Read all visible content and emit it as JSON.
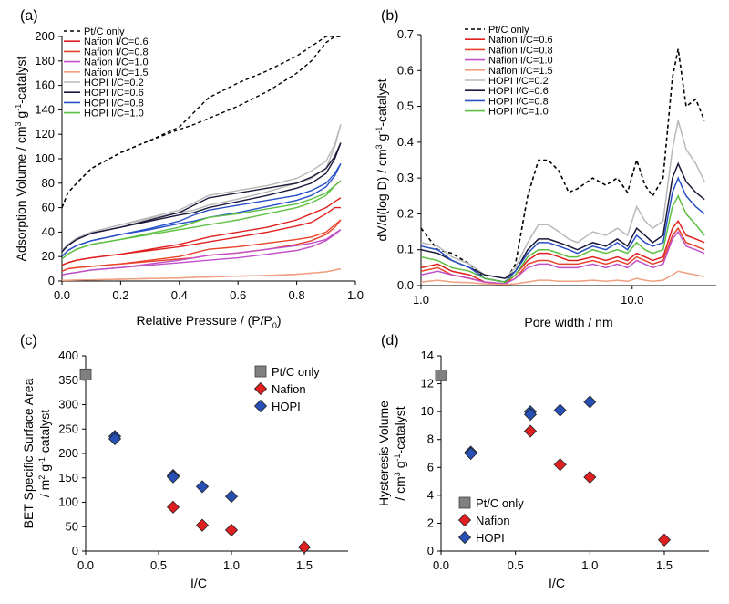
{
  "colors": {
    "pt": "#000000",
    "nafion": [
      "#e02020",
      "#e8432a",
      "#c050c8",
      "#f0a080"
    ],
    "hopi": [
      "#b8b8b8",
      "#1a1a3a",
      "#2850c8",
      "#5cc040"
    ],
    "nafion_marker": "#e02020",
    "hopi_marker": "#2850b4",
    "pt_marker": "#808080"
  },
  "chart_data": [
    {
      "panel_label": "(a)",
      "type": "line",
      "xlabel": "Relative Pressure / (P/P0)",
      "xlabel_main": "Relative Pressure / (P/P",
      "xlabel_sub": "0",
      "xlabel_end": ")",
      "ylabel_line1": "Adsorption  Volume / cm",
      "ylabel_sup": "3",
      "ylabel_rest": " g",
      "ylabel_sup2": "-1",
      "ylabel_end": "-catalyst",
      "xlim": [
        0,
        1.0
      ],
      "ylim": [
        0,
        200
      ],
      "xticks": [
        "0.0",
        "0.2",
        "0.4",
        "0.6",
        "0.8",
        "1.0"
      ],
      "yticks": [
        "0",
        "20",
        "40",
        "60",
        "80",
        "100",
        "120",
        "140",
        "160",
        "180",
        "200"
      ],
      "legend": [
        "Pt/C only",
        "Nafion I/C=0.6",
        "Nafion I/C=0.8",
        "Nafion I/C=1.0",
        "Nafion I/C=1.5",
        "HOPI I/C=0.2",
        "HOPI I/C=0.6",
        "HOPI I/C=0.8",
        "HOPI I/C=1.0"
      ],
      "series_anchor_x": [
        0.0,
        0.02,
        0.05,
        0.1,
        0.2,
        0.3,
        0.4,
        0.45,
        0.5,
        0.6,
        0.7,
        0.8,
        0.85,
        0.9,
        0.93,
        0.95
      ],
      "series": [
        {
          "name": "Pt/C only",
          "style": "dashed",
          "color_key": "pt",
          "idx": 0,
          "adsorption": [
            60,
            72,
            80,
            92,
            105,
            115,
            124,
            128,
            133,
            143,
            155,
            170,
            180,
            195,
            200,
            200
          ],
          "desorption": [
            60,
            72,
            80,
            92,
            105,
            115,
            126,
            138,
            150,
            162,
            172,
            184,
            192,
            200,
            200,
            200
          ]
        },
        {
          "name": "Nafion I/C=0.6",
          "color_key": "nafion",
          "idx": 0,
          "adsorption": [
            13,
            15,
            17,
            19,
            22,
            25,
            28,
            30,
            32,
            36,
            40,
            45,
            48,
            55,
            60,
            60
          ],
          "desorption": [
            13,
            15,
            17,
            19,
            22,
            26,
            30,
            33,
            36,
            40,
            44,
            50,
            55,
            60,
            65,
            68
          ]
        },
        {
          "name": "Nafion I/C=0.8",
          "color_key": "nafion",
          "idx": 1,
          "adsorption": [
            8,
            10,
            11,
            12,
            14,
            16,
            18,
            19,
            21,
            23,
            26,
            30,
            33,
            38,
            44,
            50
          ],
          "desorption": [
            8,
            10,
            11,
            12,
            14,
            17,
            20,
            23,
            26,
            28,
            31,
            34,
            36,
            40,
            46,
            50
          ]
        },
        {
          "name": "Nafion I/C=1.0",
          "color_key": "nafion",
          "idx": 2,
          "adsorption": [
            5,
            6,
            7,
            9,
            11,
            13,
            15,
            16,
            17,
            19,
            22,
            25,
            28,
            33,
            38,
            42
          ],
          "desorption": [
            5,
            6,
            7,
            9,
            11,
            14,
            17,
            19,
            21,
            23,
            26,
            29,
            31,
            34,
            39,
            42
          ]
        },
        {
          "name": "Nafion I/C=1.5",
          "color_key": "nafion",
          "idx": 3,
          "adsorption": [
            0.5,
            0.6,
            0.8,
            1,
            1.5,
            2,
            2.5,
            3,
            3.3,
            4,
            4.5,
            5.5,
            6.5,
            7.5,
            9,
            10
          ],
          "desorption": [
            0.5,
            0.6,
            0.8,
            1,
            1.5,
            2,
            2.5,
            3,
            3.3,
            4,
            4.5,
            5.5,
            6.5,
            7.5,
            9,
            10
          ]
        },
        {
          "name": "HOPI I/C=0.2",
          "color_key": "hopi",
          "idx": 0,
          "adsorption": [
            25,
            30,
            35,
            40,
            46,
            51,
            56,
            58,
            62,
            67,
            73,
            80,
            84,
            92,
            110,
            128
          ],
          "desorption": [
            25,
            30,
            35,
            40,
            46,
            52,
            58,
            64,
            70,
            74,
            78,
            84,
            90,
            98,
            112,
            128
          ]
        },
        {
          "name": "HOPI I/C=0.6",
          "color_key": "hopi",
          "idx": 1,
          "adsorption": [
            24,
            29,
            34,
            39,
            44,
            49,
            54,
            56,
            60,
            65,
            70,
            76,
            80,
            88,
            100,
            113
          ],
          "desorption": [
            24,
            29,
            34,
            39,
            44,
            50,
            56,
            62,
            68,
            72,
            76,
            80,
            85,
            92,
            102,
            113
          ]
        },
        {
          "name": "HOPI I/C=0.8",
          "color_key": "hopi",
          "idx": 2,
          "adsorption": [
            20,
            25,
            29,
            33,
            38,
            42,
            47,
            49,
            52,
            56,
            61,
            66,
            70,
            77,
            86,
            96
          ],
          "desorption": [
            20,
            25,
            29,
            33,
            38,
            43,
            49,
            54,
            58,
            62,
            66,
            70,
            74,
            80,
            88,
            96
          ]
        },
        {
          "name": "HOPI I/C=1.0",
          "color_key": "hopi",
          "idx": 3,
          "adsorption": [
            18,
            22,
            26,
            30,
            34,
            38,
            42,
            44,
            46,
            50,
            55,
            60,
            64,
            70,
            78,
            82
          ],
          "desorption": [
            18,
            22,
            26,
            30,
            34,
            39,
            44,
            48,
            52,
            55,
            59,
            63,
            67,
            72,
            78,
            82
          ]
        }
      ]
    },
    {
      "panel_label": "(b)",
      "type": "line",
      "xscale": "log",
      "xlabel": "Pore width / nm",
      "ylabel_line1": "dV/d(log D) / cm",
      "ylabel_sup": "3",
      "ylabel_rest": " g",
      "ylabel_sup2": "-1",
      "ylabel_end": "-catalyst",
      "xlim": [
        1.0,
        25
      ],
      "ylim": [
        0,
        0.7
      ],
      "xticks": [
        "1.0",
        "10.0"
      ],
      "yticks": [
        "0.0",
        "0.1",
        "0.2",
        "0.3",
        "0.4",
        "0.5",
        "0.6",
        "0.7"
      ],
      "legend": [
        "Pt/C only",
        "Nafion I/C=0.6",
        "Nafion I/C=0.8",
        "Nafion I/C=1.0",
        "Nafion I/C=1.5",
        "HOPI I/C=0.2",
        "HOPI I/C=0.6",
        "HOPI I/C=0.8",
        "HOPI I/C=1.0"
      ],
      "x": [
        1.0,
        1.2,
        1.4,
        1.7,
        2.0,
        2.5,
        2.8,
        3.2,
        3.6,
        4.0,
        4.5,
        5.0,
        5.5,
        6.5,
        7.5,
        8.5,
        9.5,
        10.5,
        11.5,
        12.5,
        14,
        15.5,
        16.5,
        18,
        20,
        22
      ],
      "series": [
        {
          "name": "Pt/C only",
          "style": "dashed",
          "color_key": "pt",
          "idx": 0,
          "values": [
            0.16,
            0.1,
            0.09,
            0.06,
            0.02,
            0.01,
            0.06,
            0.25,
            0.35,
            0.35,
            0.32,
            0.26,
            0.27,
            0.3,
            0.28,
            0.3,
            0.26,
            0.35,
            0.28,
            0.25,
            0.3,
            0.58,
            0.66,
            0.5,
            0.52,
            0.46
          ]
        },
        {
          "name": "Nafion I/C=0.6",
          "color_key": "nafion",
          "idx": 0,
          "values": [
            0.05,
            0.06,
            0.04,
            0.03,
            0.01,
            0.005,
            0.03,
            0.07,
            0.09,
            0.09,
            0.08,
            0.07,
            0.07,
            0.08,
            0.07,
            0.08,
            0.07,
            0.09,
            0.08,
            0.07,
            0.08,
            0.16,
            0.18,
            0.14,
            0.13,
            0.12
          ]
        },
        {
          "name": "Nafion I/C=0.8",
          "color_key": "nafion",
          "idx": 1,
          "values": [
            0.04,
            0.05,
            0.03,
            0.02,
            0.01,
            0.005,
            0.02,
            0.06,
            0.07,
            0.07,
            0.06,
            0.06,
            0.06,
            0.07,
            0.06,
            0.07,
            0.06,
            0.08,
            0.07,
            0.06,
            0.07,
            0.14,
            0.16,
            0.12,
            0.11,
            0.1
          ]
        },
        {
          "name": "Nafion I/C=1.0",
          "color_key": "nafion",
          "idx": 2,
          "values": [
            0.03,
            0.04,
            0.03,
            0.02,
            0.01,
            0.005,
            0.02,
            0.05,
            0.06,
            0.06,
            0.05,
            0.05,
            0.05,
            0.06,
            0.05,
            0.06,
            0.05,
            0.07,
            0.06,
            0.05,
            0.06,
            0.13,
            0.15,
            0.11,
            0.1,
            0.09
          ]
        },
        {
          "name": "Nafion I/C=1.5",
          "color_key": "nafion",
          "idx": 3,
          "values": [
            0.01,
            0.015,
            0.01,
            0.008,
            0.005,
            0.003,
            0.005,
            0.01,
            0.015,
            0.015,
            0.012,
            0.012,
            0.012,
            0.015,
            0.012,
            0.015,
            0.012,
            0.02,
            0.015,
            0.012,
            0.015,
            0.03,
            0.04,
            0.035,
            0.03,
            0.025
          ]
        },
        {
          "name": "HOPI I/C=0.2",
          "color_key": "hopi",
          "idx": 0,
          "values": [
            0.12,
            0.11,
            0.08,
            0.06,
            0.03,
            0.02,
            0.05,
            0.12,
            0.17,
            0.17,
            0.15,
            0.13,
            0.12,
            0.15,
            0.14,
            0.16,
            0.14,
            0.22,
            0.18,
            0.16,
            0.18,
            0.38,
            0.46,
            0.38,
            0.34,
            0.29
          ]
        },
        {
          "name": "HOPI I/C=0.6",
          "color_key": "hopi",
          "idx": 1,
          "values": [
            0.1,
            0.09,
            0.07,
            0.05,
            0.03,
            0.02,
            0.04,
            0.1,
            0.13,
            0.13,
            0.12,
            0.11,
            0.1,
            0.12,
            0.11,
            0.13,
            0.11,
            0.16,
            0.14,
            0.12,
            0.14,
            0.3,
            0.34,
            0.29,
            0.26,
            0.24
          ]
        },
        {
          "name": "HOPI I/C=0.8",
          "color_key": "hopi",
          "idx": 2,
          "values": [
            0.11,
            0.1,
            0.07,
            0.05,
            0.02,
            0.01,
            0.04,
            0.09,
            0.12,
            0.12,
            0.11,
            0.1,
            0.09,
            0.11,
            0.1,
            0.12,
            0.1,
            0.14,
            0.12,
            0.11,
            0.12,
            0.26,
            0.3,
            0.25,
            0.22,
            0.2
          ]
        },
        {
          "name": "HOPI I/C=1.0",
          "color_key": "hopi",
          "idx": 3,
          "values": [
            0.08,
            0.07,
            0.05,
            0.04,
            0.02,
            0.01,
            0.03,
            0.08,
            0.1,
            0.1,
            0.09,
            0.08,
            0.08,
            0.1,
            0.09,
            0.1,
            0.09,
            0.12,
            0.1,
            0.09,
            0.1,
            0.22,
            0.25,
            0.2,
            0.17,
            0.14
          ]
        }
      ]
    },
    {
      "panel_label": "(c)",
      "type": "scatter",
      "xlabel": "I/C",
      "ylabel_line1": "BET Specific Surface Area",
      "ylabel_line2_a": "/ m",
      "ylabel_sup": "2",
      "ylabel_line2_b": " g",
      "ylabel_sup2": "-1",
      "ylabel_line2_c": "-catalyst",
      "xlim": [
        0,
        1.8
      ],
      "ylim": [
        0,
        400
      ],
      "xticks": [
        "0.0",
        "0.5",
        "1.0",
        "1.5"
      ],
      "yticks": [
        "0",
        "50",
        "100",
        "150",
        "200",
        "250",
        "300",
        "350",
        "400"
      ],
      "series": [
        {
          "name": "Pt/C only",
          "marker": "square",
          "color_key": "pt_marker",
          "x": [
            0.0
          ],
          "y": [
            362
          ]
        },
        {
          "name": "Nafion",
          "marker": "diamond",
          "color_key": "nafion_marker",
          "x": [
            0.6,
            0.8,
            1.0,
            1.5
          ],
          "y": [
            90,
            53,
            43,
            8
          ]
        },
        {
          "name": "HOPI",
          "marker": "diamond",
          "color_key": "hopi_marker",
          "x": [
            0.2,
            0.2,
            0.6,
            0.6,
            0.8,
            1.0
          ],
          "y": [
            235,
            230,
            155,
            152,
            132,
            112
          ]
        }
      ]
    },
    {
      "panel_label": "(d)",
      "type": "scatter",
      "xlabel": "I/C",
      "ylabel_line1": "Hysteresis Volume",
      "ylabel_line2_a": "/ cm",
      "ylabel_sup": "3",
      "ylabel_line2_b": " g",
      "ylabel_sup2": "-1",
      "ylabel_line2_c": "-catalyst",
      "xlim": [
        0,
        1.8
      ],
      "ylim": [
        0,
        14
      ],
      "xticks": [
        "0.0",
        "0.5",
        "1.0",
        "1.5"
      ],
      "yticks": [
        "0",
        "2",
        "4",
        "6",
        "8",
        "10",
        "12",
        "14"
      ],
      "series": [
        {
          "name": "Pt/C only",
          "marker": "square",
          "color_key": "pt_marker",
          "x": [
            0.0
          ],
          "y": [
            12.6
          ]
        },
        {
          "name": "Nafion",
          "marker": "diamond",
          "color_key": "nafion_marker",
          "x": [
            0.6,
            0.8,
            1.0,
            1.5
          ],
          "y": [
            8.6,
            6.2,
            5.3,
            0.8
          ]
        },
        {
          "name": "HOPI",
          "marker": "diamond",
          "color_key": "hopi_marker",
          "x": [
            0.2,
            0.2,
            0.6,
            0.6,
            0.8,
            1.0
          ],
          "y": [
            7.1,
            7.0,
            10.0,
            9.8,
            10.1,
            10.7
          ]
        }
      ]
    }
  ]
}
